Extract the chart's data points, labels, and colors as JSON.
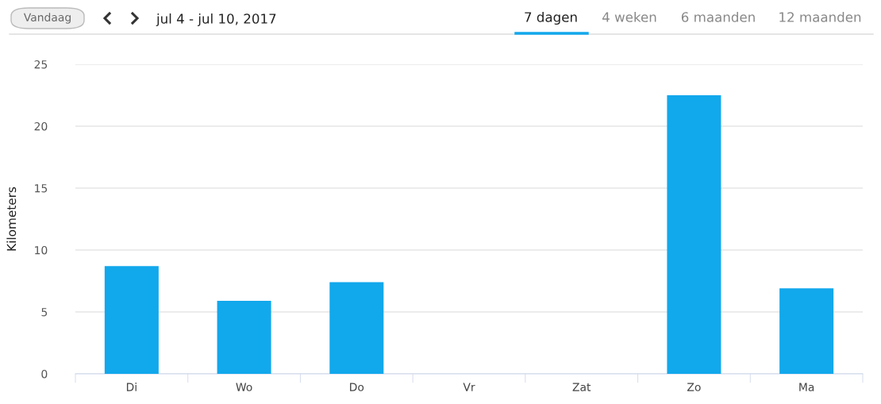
{
  "chart_data": {
    "type": "bar",
    "title": "jul 4 - jul 10, 2017",
    "annotations": [
      "Vandaag",
      "7 dagen",
      "4 weken",
      "6 maanden",
      "12 maanden"
    ],
    "categories": [
      "Di",
      "Wo",
      "Do",
      "Vr",
      "Zat",
      "Zo",
      "Ma"
    ],
    "values": [
      8.7,
      5.9,
      7.4,
      0,
      0,
      22.5,
      6.9
    ],
    "color": "#12a8ec",
    "ylabel": "Kilometers",
    "ylim": [
      0,
      25
    ],
    "yticks": [
      0,
      5,
      10,
      15,
      20,
      25
    ],
    "grid": "y"
  }
}
